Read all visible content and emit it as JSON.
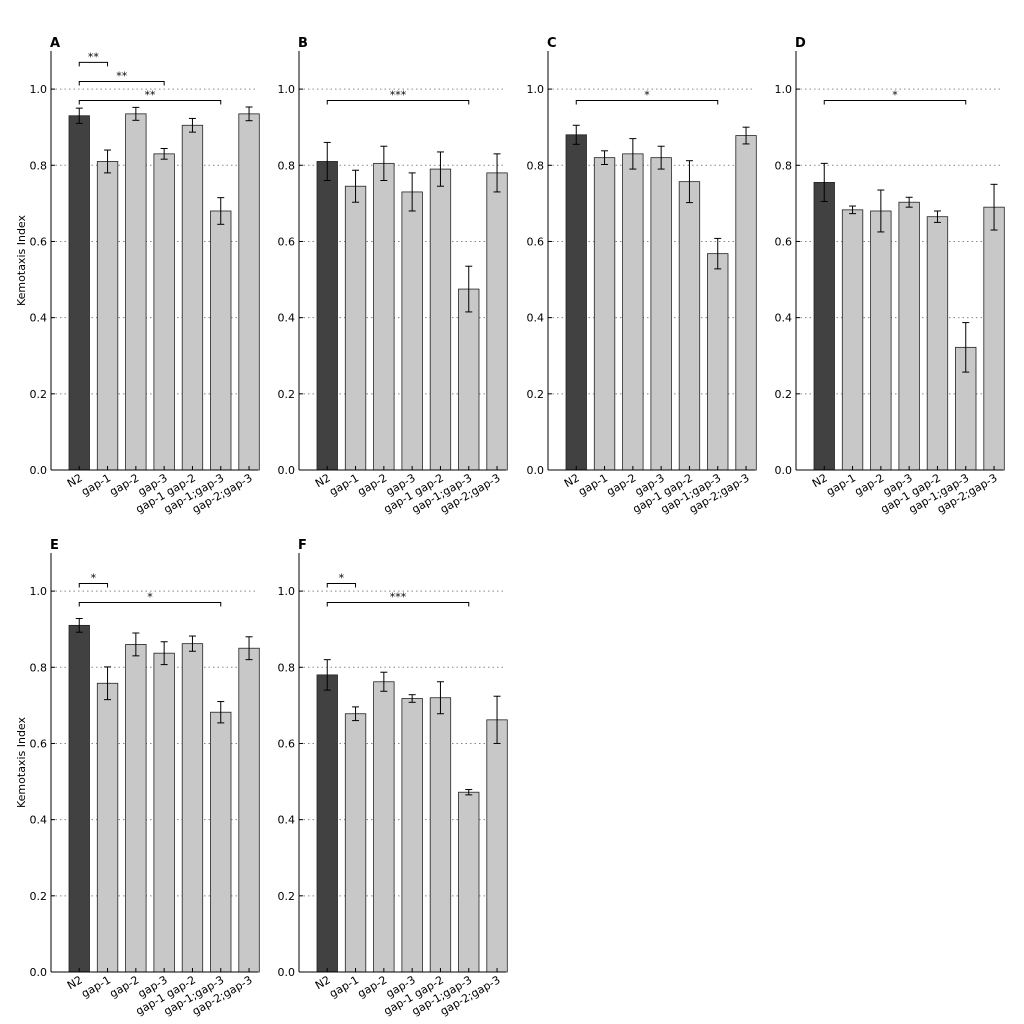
{
  "colors": {
    "control_bar": "#414141",
    "mutant_bar": "#c8c8c8"
  },
  "chart_data": [
    {
      "type": "bar",
      "panel": "A",
      "ylabel": "Kemotaxis Index",
      "ylim": [
        0,
        1.1
      ],
      "yticks": [
        "0.0",
        "0.2",
        "0.4",
        "0.6",
        "0.8",
        "1.0"
      ],
      "grid": "dotted lines at 0.2, 0.4, 0.6, 0.8, 1.0",
      "categories": [
        "N2",
        "gap-1",
        "gap-2",
        "gap-3",
        "gap-1 gap-2",
        "gap-1;gap-3",
        "gap-2;gap-3"
      ],
      "values": [
        0.93,
        0.81,
        0.935,
        0.83,
        0.905,
        0.68,
        0.935
      ],
      "errors": [
        0.02,
        0.03,
        0.017,
        0.014,
        0.018,
        0.035,
        0.018
      ],
      "significance": [
        {
          "from": 0,
          "to": 1,
          "y": 1.07,
          "label": "**"
        },
        {
          "from": 0,
          "to": 3,
          "y": 1.02,
          "label": "**"
        },
        {
          "from": 0,
          "to": 5,
          "y": 0.97,
          "label": "**"
        }
      ]
    },
    {
      "type": "bar",
      "panel": "B",
      "ylabel": "",
      "ylim": [
        0,
        1.1
      ],
      "yticks": [
        "0.0",
        "0.2",
        "0.4",
        "0.6",
        "0.8",
        "1.0"
      ],
      "grid": "dotted lines at 0.2, 0.4, 0.6, 0.8, 1.0",
      "categories": [
        "N2",
        "gap-1",
        "gap-2",
        "gap-3",
        "gap-1 gap-2",
        "gap-1;gap-3",
        "gap-2;gap-3"
      ],
      "values": [
        0.81,
        0.745,
        0.805,
        0.73,
        0.79,
        0.475,
        0.78
      ],
      "errors": [
        0.05,
        0.042,
        0.045,
        0.05,
        0.045,
        0.06,
        0.05
      ],
      "significance": [
        {
          "from": 0,
          "to": 5,
          "y": 0.97,
          "label": "***"
        }
      ]
    },
    {
      "type": "bar",
      "panel": "C",
      "ylabel": "",
      "ylim": [
        0,
        1.1
      ],
      "yticks": [
        "0.0",
        "0.2",
        "0.4",
        "0.6",
        "0.8",
        "1.0"
      ],
      "grid": "dotted lines at 0.2, 0.4, 0.6, 0.8, 1.0",
      "categories": [
        "N2",
        "gap-1",
        "gap-2",
        "gap-3",
        "gap-1 gap-2",
        "gap-1;gap-3",
        "gap-2;gap-3"
      ],
      "values": [
        0.88,
        0.82,
        0.83,
        0.82,
        0.757,
        0.568,
        0.878
      ],
      "errors": [
        0.025,
        0.018,
        0.04,
        0.03,
        0.055,
        0.04,
        0.022
      ],
      "significance": [
        {
          "from": 0,
          "to": 5,
          "y": 0.97,
          "label": "*"
        }
      ]
    },
    {
      "type": "bar",
      "panel": "D",
      "ylabel": "",
      "ylim": [
        0,
        1.1
      ],
      "yticks": [
        "0.0",
        "0.2",
        "0.4",
        "0.6",
        "0.8",
        "1.0"
      ],
      "grid": "dotted lines at 0.2, 0.4, 0.6, 0.8, 1.0",
      "categories": [
        "N2",
        "gap-1",
        "gap-2",
        "gap-3",
        "gap-1 gap-2",
        "gap-1;gap-3",
        "gap-2;gap-3"
      ],
      "values": [
        0.755,
        0.683,
        0.68,
        0.703,
        0.665,
        0.322,
        0.69
      ],
      "errors": [
        0.05,
        0.01,
        0.055,
        0.013,
        0.015,
        0.065,
        0.06
      ],
      "significance": [
        {
          "from": 0,
          "to": 5,
          "y": 0.97,
          "label": "*"
        }
      ]
    },
    {
      "type": "bar",
      "panel": "E",
      "ylabel": "Kemotaxis Index",
      "ylim": [
        0,
        1.1
      ],
      "yticks": [
        "0.0",
        "0.2",
        "0.4",
        "0.6",
        "0.8",
        "1.0"
      ],
      "grid": "dotted lines at 0.2, 0.4, 0.6, 0.8, 1.0",
      "categories": [
        "N2",
        "gap-1",
        "gap-2",
        "gap-3",
        "gap-1 gap-2",
        "gap-1;gap-3",
        "gap-2;gap-3"
      ],
      "values": [
        0.91,
        0.758,
        0.86,
        0.837,
        0.862,
        0.682,
        0.85
      ],
      "errors": [
        0.018,
        0.043,
        0.03,
        0.03,
        0.02,
        0.028,
        0.03
      ],
      "significance": [
        {
          "from": 0,
          "to": 1,
          "y": 1.02,
          "label": "*"
        },
        {
          "from": 0,
          "to": 5,
          "y": 0.97,
          "label": "*"
        }
      ]
    },
    {
      "type": "bar",
      "panel": "F",
      "ylabel": "",
      "ylim": [
        0,
        1.1
      ],
      "yticks": [
        "0.0",
        "0.2",
        "0.4",
        "0.6",
        "0.8",
        "1.0"
      ],
      "grid": "dotted lines at 0.2, 0.4, 0.6, 0.8, 1.0",
      "categories": [
        "N2",
        "gap-1",
        "gap-2",
        "gap-3",
        "gap-1 gap-2",
        "gap-1;gap-3",
        "gap-2;gap-3"
      ],
      "values": [
        0.78,
        0.678,
        0.762,
        0.718,
        0.72,
        0.472,
        0.662
      ],
      "errors": [
        0.04,
        0.018,
        0.025,
        0.01,
        0.042,
        0.007,
        0.062
      ],
      "significance": [
        {
          "from": 0,
          "to": 1,
          "y": 1.02,
          "label": "*"
        },
        {
          "from": 0,
          "to": 5,
          "y": 0.97,
          "label": "***"
        }
      ]
    }
  ]
}
